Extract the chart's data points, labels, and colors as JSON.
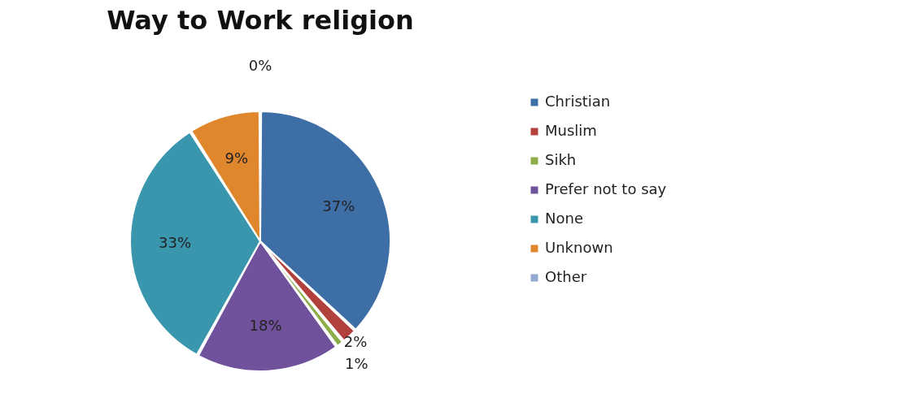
{
  "chart_data": {
    "type": "pie",
    "title": "Way to Work religion",
    "categories": [
      "Christian",
      "Muslim",
      "Sikh",
      "Prefer not to say",
      "None",
      "Unknown",
      "Other"
    ],
    "values": [
      37,
      2,
      1,
      18,
      33,
      9,
      0
    ],
    "value_labels": [
      "37%",
      "2%",
      "1%",
      "18%",
      "33%",
      "9%",
      "0%"
    ],
    "colors": [
      "#3d6ea6",
      "#b2403c",
      "#8cae48",
      "#6f519c",
      "#3996ad",
      "#e0872d",
      "#93a9d0"
    ],
    "legend": "right"
  }
}
